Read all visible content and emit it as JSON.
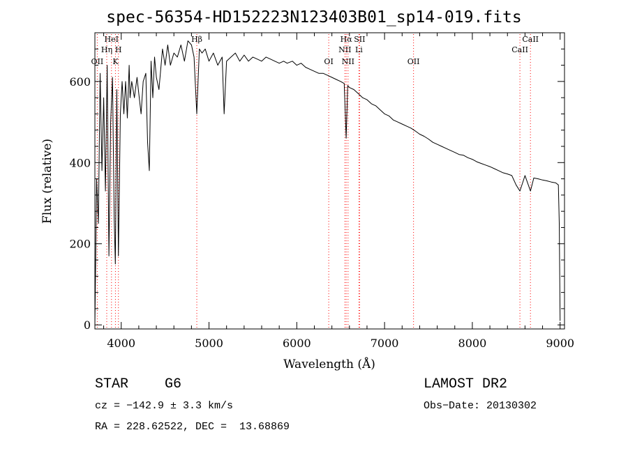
{
  "chart_data": {
    "type": "line",
    "title": "spec-56354-HD152223N123403B01_sp14-019.fits",
    "xlabel": "Wavelength (Å)",
    "ylabel": "Flux (relative)",
    "xlim": [
      3700,
      9050
    ],
    "ylim": [
      -10,
      720
    ],
    "x_ticks": [
      4000,
      5000,
      6000,
      7000,
      8000,
      9000
    ],
    "y_ticks": [
      0,
      200,
      400,
      600
    ],
    "grid": false,
    "series": [
      {
        "x": [
          3700,
          3720,
          3740,
          3760,
          3780,
          3800,
          3820,
          3840,
          3860,
          3880,
          3900,
          3920,
          3933,
          3950,
          3968,
          3990,
          4010,
          4030,
          4050,
          4070,
          4090,
          4101,
          4120,
          4150,
          4180,
          4200,
          4226,
          4250,
          4280,
          4300,
          4320,
          4340,
          4360,
          4380,
          4400,
          4430,
          4470,
          4500,
          4530,
          4560,
          4600,
          4640,
          4680,
          4720,
          4760,
          4800,
          4830,
          4861,
          4890,
          4920,
          4957,
          5000,
          5050,
          5100,
          5150,
          5172,
          5200,
          5250,
          5300,
          5350,
          5400,
          5450,
          5500,
          5550,
          5600,
          5650,
          5700,
          5750,
          5800,
          5850,
          5890,
          5950,
          6000,
          6050,
          6100,
          6150,
          6200,
          6250,
          6300,
          6350,
          6400,
          6450,
          6500,
          6540,
          6563,
          6580,
          6600,
          6650,
          6700,
          6750,
          6800,
          6850,
          6900,
          6950,
          7000,
          7050,
          7100,
          7150,
          7200,
          7250,
          7300,
          7350,
          7400,
          7450,
          7500,
          7550,
          7600,
          7650,
          7700,
          7750,
          7800,
          7850,
          7900,
          7950,
          8000,
          8050,
          8100,
          8150,
          8200,
          8250,
          8300,
          8350,
          8400,
          8450,
          8498,
          8542,
          8600,
          8662,
          8700,
          8750,
          8800,
          8850,
          8900,
          8950,
          8980,
          8990,
          9000
        ],
        "y": [
          0,
          360,
          250,
          620,
          380,
          560,
          330,
          640,
          170,
          500,
          610,
          260,
          150,
          580,
          170,
          520,
          600,
          520,
          600,
          510,
          640,
          560,
          600,
          560,
          610,
          570,
          520,
          600,
          620,
          450,
          380,
          650,
          560,
          660,
          610,
          580,
          680,
          640,
          690,
          640,
          670,
          660,
          690,
          650,
          700,
          690,
          660,
          520,
          680,
          670,
          680,
          650,
          670,
          640,
          660,
          520,
          650,
          660,
          670,
          650,
          665,
          650,
          660,
          655,
          650,
          660,
          655,
          650,
          645,
          650,
          645,
          650,
          640,
          645,
          635,
          630,
          625,
          620,
          620,
          615,
          610,
          605,
          600,
          595,
          460,
          590,
          585,
          580,
          570,
          560,
          555,
          545,
          540,
          530,
          520,
          515,
          505,
          500,
          495,
          490,
          485,
          478,
          470,
          465,
          458,
          450,
          445,
          440,
          435,
          430,
          425,
          420,
          418,
          412,
          408,
          402,
          398,
          394,
          390,
          385,
          380,
          375,
          372,
          368,
          345,
          330,
          368,
          330,
          362,
          360,
          357,
          355,
          352,
          350,
          345,
          250,
          10
        ]
      }
    ],
    "annotations": {
      "lines": [
        {
          "label": "OII",
          "x": 3727
        },
        {
          "label": "Hη",
          "x": 3835
        },
        {
          "label": "HeI",
          "x": 3889
        },
        {
          "label": "K",
          "x": 3934
        },
        {
          "label": "H",
          "x": 3968
        },
        {
          "label": "Hβ",
          "x": 4861
        },
        {
          "label": "OI",
          "x": 6364
        },
        {
          "label": "NII",
          "x": 6548
        },
        {
          "label": "Hα",
          "x": 6563
        },
        {
          "label": "NII",
          "x": 6584
        },
        {
          "label": "Li",
          "x": 6708
        },
        {
          "label": "SII",
          "x": 6716
        },
        {
          "label": "OII",
          "x": 7330
        },
        {
          "label": "CaII",
          "x": 8542
        },
        {
          "label": "CaII",
          "x": 8662
        }
      ],
      "line_color": "#ff0000"
    }
  },
  "info": {
    "object": "STAR",
    "subclass": "G6",
    "survey": "LAMOST DR2",
    "cz": "cz = −142.9 ± 3.3 km/s",
    "obs_date": "Obs−Date: 20130302",
    "coords": "RA = 228.62522, DEC =  13.68869"
  }
}
